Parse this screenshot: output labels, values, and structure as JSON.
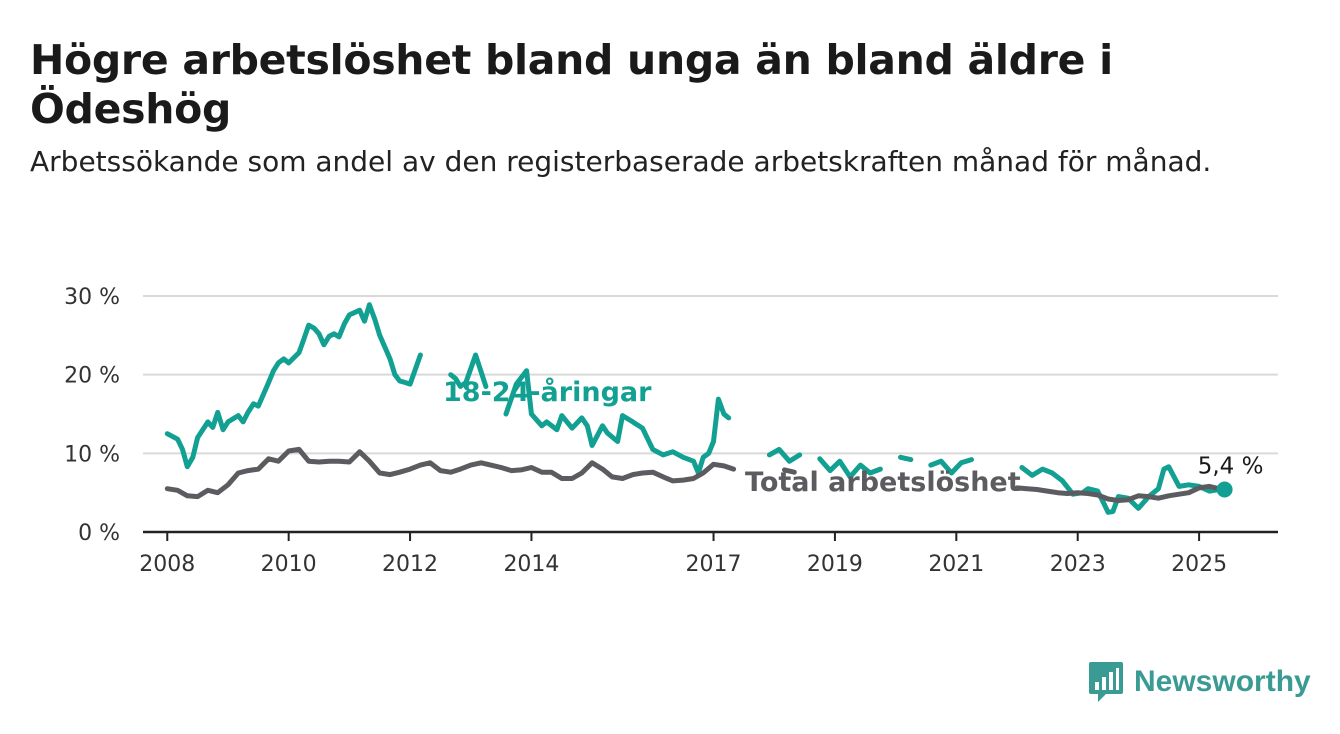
{
  "title": "Högre arbetslöshet bland unga än bland äldre i Ödeshög",
  "subtitle": "Arbetssökande som andel av den registerbaserade arbetskraften månad för månad.",
  "brand": {
    "name": "Newsworthy",
    "color": "#3a9a94",
    "logo_icon": "bar-chart-speech-bubble-icon"
  },
  "chart_data": {
    "type": "line",
    "title": "Högre arbetslöshet bland unga än bland äldre i Ödeshög",
    "subtitle": "Arbetssökande som andel av den registerbaserade arbetskraften månad för månad.",
    "xlabel": "",
    "ylabel": "",
    "xlim": [
      2007.6,
      2026.3
    ],
    "ylim": [
      0,
      30
    ],
    "y_ticks": [
      0,
      10,
      20,
      30
    ],
    "y_tick_labels": [
      "0 %",
      "10 %",
      "20 %",
      "30 %"
    ],
    "x_ticks": [
      2008,
      2010,
      2012,
      2014,
      2017,
      2019,
      2021,
      2023,
      2025
    ],
    "x_tick_labels": [
      "2008",
      "2010",
      "2012",
      "2014",
      "2017",
      "2019",
      "2021",
      "2023",
      "2025"
    ],
    "grid": "horizontal",
    "legend": "inline labels",
    "end_label": "5,4 %",
    "end_value": 5.4,
    "series": [
      {
        "name": "18-24-åringar",
        "color": "#12a092",
        "x": [
          2008.0,
          2008.17,
          2008.25,
          2008.33,
          2008.42,
          2008.5,
          2008.67,
          2008.75,
          2008.83,
          2008.92,
          2009.0,
          2009.17,
          2009.25,
          2009.33,
          2009.42,
          2009.5,
          2009.67,
          2009.75,
          2009.83,
          2009.92,
          2010.0,
          2010.17,
          2010.25,
          2010.33,
          2010.42,
          2010.5,
          2010.58,
          2010.67,
          2010.75,
          2010.83,
          2010.92,
          2011.0,
          2011.17,
          2011.25,
          2011.33,
          2011.42,
          2011.5,
          2011.67,
          2011.75,
          2011.83,
          2011.92,
          2012.0,
          2012.17,
          2012.25,
          2012.33,
          2012.5,
          2012.67,
          2012.75,
          2012.83,
          2012.92,
          2013.08,
          2013.25,
          2013.42,
          2013.58,
          2013.75,
          2013.92,
          2014.0,
          2014.17,
          2014.25,
          2014.42,
          2014.5,
          2014.67,
          2014.83,
          2014.92,
          2015.0,
          2015.17,
          2015.25,
          2015.42,
          2015.5,
          2015.67,
          2015.83,
          2016.0,
          2016.17,
          2016.33,
          2016.5,
          2016.67,
          2016.75,
          2016.83,
          2016.92,
          2017.0,
          2017.08,
          2017.17,
          2017.25,
          2017.42,
          2017.58,
          2017.75,
          2017.92,
          2018.08,
          2018.25,
          2018.42,
          2018.58,
          2018.75,
          2018.92,
          2019.08,
          2019.25,
          2019.42,
          2019.58,
          2019.75,
          2019.92,
          2020.08,
          2020.25,
          2020.42,
          2020.58,
          2020.75,
          2020.92,
          2021.08,
          2021.25,
          2021.42,
          2021.58,
          2021.75,
          2021.92,
          2022.08,
          2022.25,
          2022.42,
          2022.58,
          2022.75,
          2022.92,
          2023.08,
          2023.17,
          2023.33,
          2023.42,
          2023.5,
          2023.58,
          2023.67,
          2023.83,
          2024.0,
          2024.17,
          2024.33,
          2024.42,
          2024.5,
          2024.67,
          2024.83,
          2025.0,
          2025.17,
          2025.33,
          2025.42
        ],
        "values": [
          12.5,
          11.8,
          10.5,
          8.3,
          9.5,
          12.0,
          14.0,
          13.3,
          15.2,
          13.0,
          14.0,
          14.8,
          14.0,
          15.2,
          16.3,
          16.0,
          19.0,
          20.5,
          21.5,
          22.0,
          21.5,
          22.8,
          24.5,
          26.3,
          25.9,
          25.2,
          23.8,
          24.9,
          25.2,
          24.8,
          26.5,
          27.6,
          28.2,
          26.8,
          28.9,
          27.0,
          25.0,
          22.0,
          20.0,
          19.2,
          19.0,
          18.8,
          22.5,
          22.3,
          22.0,
          21.2,
          20.0,
          19.5,
          18.5,
          19.0,
          22.5,
          18.5,
          17.2,
          15.0,
          18.8,
          20.5,
          15.0,
          13.5,
          14.0,
          13.0,
          14.8,
          13.2,
          14.5,
          13.5,
          11.0,
          13.5,
          12.6,
          11.5,
          14.8,
          14.0,
          13.2,
          10.5,
          9.8,
          10.2,
          9.5,
          9.0,
          7.5,
          9.5,
          10.0,
          11.5,
          16.9,
          15.0,
          14.5,
          12.5,
          13.2,
          12.5,
          9.8,
          10.5,
          9.0,
          9.8,
          9.0,
          9.3,
          7.8,
          9.0,
          7.0,
          8.5,
          7.5,
          8.0,
          7.6,
          9.5,
          9.2,
          7.5,
          8.5,
          9.0,
          7.5,
          8.8,
          9.2,
          7.2,
          7.0,
          6.5,
          8.0,
          8.2,
          7.2,
          8.0,
          7.5,
          6.5,
          4.8,
          5.0,
          5.5,
          5.2,
          3.8,
          2.5,
          2.6,
          4.5,
          4.3,
          3.0,
          4.5,
          5.5,
          8.0,
          8.3,
          5.8,
          6.0,
          5.8,
          5.2,
          5.4,
          5.4
        ],
        "gaps": [
          [
            2012.22,
            2012.62
          ],
          [
            2013.3,
            2013.5
          ],
          [
            2013.78,
            2013.92
          ],
          [
            2017.35,
            2017.9
          ],
          [
            2018.5,
            2018.72
          ],
          [
            2019.85,
            2020.02
          ],
          [
            2020.32,
            2020.5
          ],
          [
            2021.4,
            2022.02
          ]
        ]
      },
      {
        "name": "Total arbetslöshet",
        "color": "#5c5c60",
        "x": [
          2008.0,
          2008.17,
          2008.33,
          2008.5,
          2008.67,
          2008.83,
          2009.0,
          2009.17,
          2009.33,
          2009.5,
          2009.67,
          2009.83,
          2010.0,
          2010.17,
          2010.33,
          2010.5,
          2010.67,
          2010.83,
          2011.0,
          2011.17,
          2011.33,
          2011.5,
          2011.67,
          2011.83,
          2012.0,
          2012.17,
          2012.33,
          2012.5,
          2012.67,
          2012.83,
          2013.0,
          2013.17,
          2013.33,
          2013.5,
          2013.67,
          2013.83,
          2014.0,
          2014.17,
          2014.33,
          2014.5,
          2014.67,
          2014.83,
          2015.0,
          2015.17,
          2015.33,
          2015.5,
          2015.67,
          2015.83,
          2016.0,
          2016.17,
          2016.33,
          2016.5,
          2016.67,
          2016.83,
          2017.0,
          2017.17,
          2017.33,
          2017.5,
          2017.67,
          2017.83,
          2018.0,
          2018.17,
          2018.33,
          2018.5,
          2018.67,
          2018.83,
          2019.0,
          2019.17,
          2019.33,
          2019.5,
          2019.67,
          2019.83,
          2020.0,
          2020.17,
          2020.33,
          2020.5,
          2020.67,
          2020.83,
          2021.0,
          2021.17,
          2021.33,
          2021.5,
          2021.67,
          2021.83,
          2022.0,
          2022.17,
          2022.33,
          2022.5,
          2022.67,
          2022.83,
          2023.0,
          2023.17,
          2023.33,
          2023.5,
          2023.67,
          2023.83,
          2024.0,
          2024.17,
          2024.33,
          2024.5,
          2024.67,
          2024.83,
          2025.0,
          2025.17,
          2025.33,
          2025.42
        ],
        "values": [
          5.5,
          5.3,
          4.6,
          4.5,
          5.3,
          5.0,
          6.0,
          7.5,
          7.8,
          8.0,
          9.3,
          9.0,
          10.3,
          10.5,
          9.0,
          8.9,
          9.0,
          9.0,
          8.9,
          10.2,
          9.0,
          7.5,
          7.3,
          7.6,
          8.0,
          8.5,
          8.8,
          7.8,
          7.6,
          8.0,
          8.5,
          8.8,
          8.5,
          8.2,
          7.8,
          7.9,
          8.2,
          7.6,
          7.6,
          6.8,
          6.8,
          7.5,
          8.8,
          8.0,
          7.0,
          6.8,
          7.3,
          7.5,
          7.6,
          7.0,
          6.5,
          6.6,
          6.8,
          7.5,
          8.6,
          8.4,
          8.0,
          7.8,
          8.0,
          8.0,
          8.3,
          7.9,
          7.6,
          7.8,
          7.5,
          7.6,
          7.4,
          7.3,
          7.2,
          6.9,
          6.9,
          6.8,
          7.0,
          6.8,
          6.5,
          6.6,
          6.4,
          6.4,
          6.6,
          6.2,
          6.0,
          6.0,
          5.8,
          5.7,
          5.6,
          5.5,
          5.4,
          5.2,
          5.0,
          4.9,
          5.0,
          4.9,
          4.7,
          4.2,
          4.0,
          4.1,
          4.6,
          4.5,
          4.3,
          4.6,
          4.8,
          5.0,
          5.6,
          5.8,
          5.5,
          5.4
        ],
        "gaps": [
          [
            2017.45,
            2018.02
          ],
          [
            2018.45,
            2021.95
          ]
        ]
      }
    ]
  }
}
